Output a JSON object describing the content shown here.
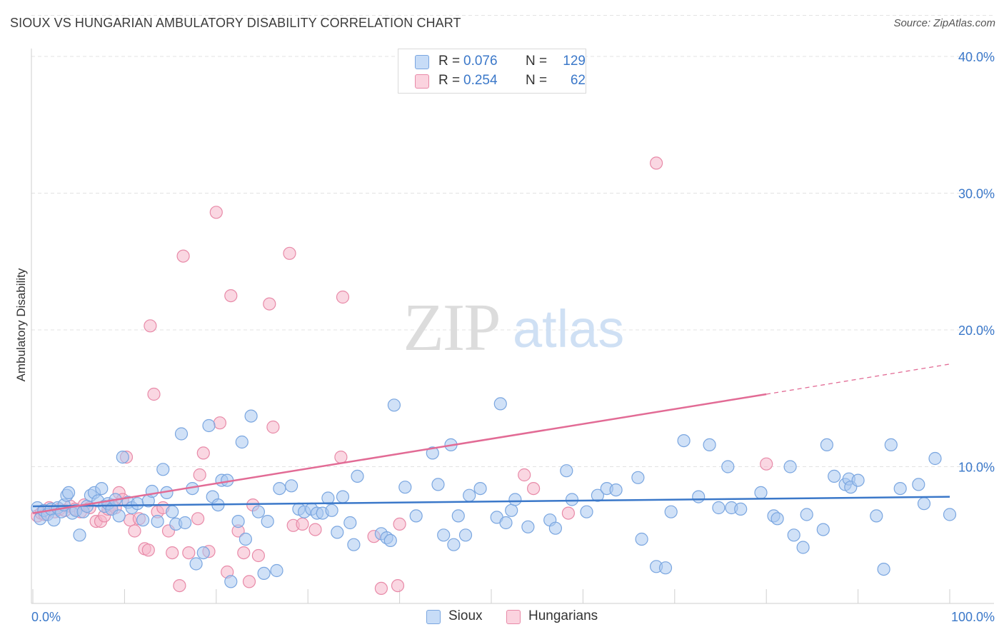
{
  "header": {
    "title": "SIOUX VS HUNGARIAN AMBULATORY DISABILITY CORRELATION CHART",
    "source": "Source: ZipAtlas.com"
  },
  "watermark": {
    "zip": "ZIP",
    "atlas": "atlas"
  },
  "legend": {
    "rows": [
      {
        "r_label": "R =",
        "r_value": "0.076",
        "n_label": "N =",
        "n_value": "129",
        "color": "#a9c8f1"
      },
      {
        "r_label": "R =",
        "r_value": "0.254",
        "n_label": "N =",
        "n_value": "62",
        "color": "#f6b7ca"
      }
    ]
  },
  "chart_data": {
    "type": "scatter",
    "title": "SIOUX VS HUNGARIAN AMBULATORY DISABILITY CORRELATION CHART",
    "xlabel": "",
    "ylabel": "Ambulatory Disability",
    "xlim": [
      0,
      100
    ],
    "ylim": [
      0,
      43
    ],
    "x_tick_labels": [
      "0.0%",
      "100.0%"
    ],
    "y_ticks": [
      10,
      20,
      30,
      40
    ],
    "y_tick_labels": [
      "10.0%",
      "20.0%",
      "30.0%",
      "40.0%"
    ],
    "grid": "horizontal dashed",
    "legend_position": "top-center",
    "series": [
      {
        "name": "Sioux",
        "color": "#a9c8f1",
        "stroke": "#7aa6e0",
        "trend": {
          "x": [
            0,
            100
          ],
          "y": [
            7.1,
            7.8
          ],
          "color": "#3b78c9"
        },
        "points": [
          [
            0.5,
            7.0
          ],
          [
            0.8,
            6.2
          ],
          [
            1.2,
            6.8
          ],
          [
            1.6,
            6.5
          ],
          [
            2.0,
            6.9
          ],
          [
            2.3,
            6.1
          ],
          [
            2.7,
            7.0
          ],
          [
            3.1,
            6.7
          ],
          [
            3.4,
            7.2
          ],
          [
            3.7,
            7.9
          ],
          [
            3.9,
            8.1
          ],
          [
            4.3,
            6.6
          ],
          [
            4.7,
            6.8
          ],
          [
            5.1,
            5.0
          ],
          [
            5.5,
            6.7
          ],
          [
            5.9,
            7.1
          ],
          [
            6.3,
            7.9
          ],
          [
            6.7,
            8.1
          ],
          [
            7.1,
            7.5
          ],
          [
            7.5,
            8.4
          ],
          [
            7.8,
            7.1
          ],
          [
            8.2,
            7.3
          ],
          [
            8.6,
            6.9
          ],
          [
            9.0,
            7.6
          ],
          [
            9.4,
            6.4
          ],
          [
            9.8,
            10.7
          ],
          [
            10.4,
            7.4
          ],
          [
            10.8,
            7.0
          ],
          [
            11.4,
            7.3
          ],
          [
            12.0,
            6.1
          ],
          [
            12.6,
            7.5
          ],
          [
            13.0,
            8.2
          ],
          [
            13.6,
            6.0
          ],
          [
            14.2,
            9.8
          ],
          [
            14.6,
            8.1
          ],
          [
            15.2,
            6.7
          ],
          [
            15.6,
            5.8
          ],
          [
            16.2,
            12.4
          ],
          [
            16.6,
            5.9
          ],
          [
            17.4,
            8.4
          ],
          [
            17.8,
            2.9
          ],
          [
            18.6,
            3.7
          ],
          [
            19.2,
            13.0
          ],
          [
            19.6,
            7.8
          ],
          [
            20.2,
            7.2
          ],
          [
            20.6,
            9.0
          ],
          [
            21.2,
            9.0
          ],
          [
            21.6,
            1.6
          ],
          [
            22.4,
            6.0
          ],
          [
            22.8,
            11.8
          ],
          [
            23.2,
            4.7
          ],
          [
            23.8,
            13.7
          ],
          [
            24.6,
            6.7
          ],
          [
            25.2,
            2.2
          ],
          [
            25.6,
            6.0
          ],
          [
            26.6,
            2.4
          ],
          [
            26.9,
            8.4
          ],
          [
            28.2,
            8.6
          ],
          [
            29.0,
            6.9
          ],
          [
            29.6,
            6.7
          ],
          [
            30.4,
            6.9
          ],
          [
            31.0,
            6.6
          ],
          [
            31.6,
            6.6
          ],
          [
            32.2,
            7.7
          ],
          [
            32.6,
            6.8
          ],
          [
            33.2,
            5.2
          ],
          [
            33.8,
            7.8
          ],
          [
            34.6,
            5.9
          ],
          [
            35.0,
            4.3
          ],
          [
            35.4,
            9.3
          ],
          [
            38.0,
            5.1
          ],
          [
            38.6,
            4.8
          ],
          [
            39.0,
            4.6
          ],
          [
            39.4,
            14.5
          ],
          [
            40.6,
            8.5
          ],
          [
            41.8,
            6.4
          ],
          [
            43.6,
            11.0
          ],
          [
            44.2,
            8.7
          ],
          [
            44.8,
            5.0
          ],
          [
            45.6,
            11.6
          ],
          [
            45.9,
            4.3
          ],
          [
            46.4,
            6.4
          ],
          [
            47.2,
            5.0
          ],
          [
            47.6,
            7.9
          ],
          [
            48.8,
            8.4
          ],
          [
            50.6,
            6.3
          ],
          [
            51.0,
            14.6
          ],
          [
            51.6,
            5.9
          ],
          [
            52.2,
            6.8
          ],
          [
            52.6,
            7.6
          ],
          [
            54.0,
            5.6
          ],
          [
            56.4,
            6.1
          ],
          [
            57.0,
            5.5
          ],
          [
            58.2,
            9.7
          ],
          [
            58.8,
            7.6
          ],
          [
            60.4,
            6.7
          ],
          [
            61.6,
            7.9
          ],
          [
            62.6,
            8.4
          ],
          [
            63.6,
            8.3
          ],
          [
            66.0,
            9.2
          ],
          [
            66.4,
            4.7
          ],
          [
            68.0,
            2.7
          ],
          [
            69.0,
            2.6
          ],
          [
            69.6,
            6.7
          ],
          [
            71.0,
            11.9
          ],
          [
            72.6,
            7.8
          ],
          [
            73.8,
            11.6
          ],
          [
            74.8,
            7.0
          ],
          [
            75.8,
            10.0
          ],
          [
            76.2,
            7.0
          ],
          [
            77.2,
            6.9
          ],
          [
            79.4,
            8.1
          ],
          [
            80.8,
            6.4
          ],
          [
            81.2,
            6.2
          ],
          [
            82.6,
            10.0
          ],
          [
            83.0,
            5.0
          ],
          [
            84.0,
            4.1
          ],
          [
            84.4,
            6.5
          ],
          [
            86.2,
            5.4
          ],
          [
            86.6,
            11.6
          ],
          [
            87.4,
            9.3
          ],
          [
            88.6,
            8.7
          ],
          [
            89.0,
            9.1
          ],
          [
            89.2,
            8.5
          ],
          [
            90.0,
            9.0
          ],
          [
            92.0,
            6.4
          ],
          [
            92.8,
            2.5
          ],
          [
            93.6,
            11.6
          ],
          [
            94.6,
            8.4
          ],
          [
            96.6,
            8.7
          ],
          [
            97.2,
            7.3
          ],
          [
            98.4,
            10.6
          ],
          [
            100.0,
            6.5
          ]
        ]
      },
      {
        "name": "Hungarians",
        "color": "#f6b7ca",
        "stroke": "#e88aa8",
        "trend": {
          "x": [
            0,
            80,
            100
          ],
          "y": [
            6.6,
            15.3,
            17.5
          ],
          "color": "#e26b95"
        },
        "points": [
          [
            0.5,
            6.4
          ],
          [
            0.9,
            6.6
          ],
          [
            1.3,
            6.5
          ],
          [
            1.8,
            7.0
          ],
          [
            2.4,
            6.7
          ],
          [
            2.9,
            6.9
          ],
          [
            3.5,
            6.8
          ],
          [
            4.1,
            7.1
          ],
          [
            4.6,
            6.9
          ],
          [
            5.2,
            6.7
          ],
          [
            5.6,
            7.2
          ],
          [
            6.2,
            7.0
          ],
          [
            6.9,
            6.0
          ],
          [
            7.4,
            6.0
          ],
          [
            7.8,
            6.4
          ],
          [
            8.2,
            6.9
          ],
          [
            8.6,
            7.2
          ],
          [
            9.0,
            7.0
          ],
          [
            9.4,
            8.1
          ],
          [
            9.8,
            7.6
          ],
          [
            10.2,
            10.7
          ],
          [
            10.6,
            6.1
          ],
          [
            11.1,
            5.3
          ],
          [
            11.6,
            6.2
          ],
          [
            12.2,
            4.0
          ],
          [
            12.6,
            3.9
          ],
          [
            12.8,
            20.3
          ],
          [
            13.2,
            15.3
          ],
          [
            13.6,
            6.7
          ],
          [
            14.2,
            7.0
          ],
          [
            14.8,
            5.3
          ],
          [
            15.2,
            3.7
          ],
          [
            16.0,
            1.3
          ],
          [
            16.4,
            25.4
          ],
          [
            17.0,
            3.7
          ],
          [
            18.0,
            6.2
          ],
          [
            18.2,
            9.4
          ],
          [
            18.6,
            11.0
          ],
          [
            19.2,
            3.8
          ],
          [
            20.0,
            28.6
          ],
          [
            20.4,
            13.2
          ],
          [
            21.2,
            2.3
          ],
          [
            21.6,
            22.5
          ],
          [
            22.4,
            5.3
          ],
          [
            23.0,
            3.7
          ],
          [
            23.6,
            1.6
          ],
          [
            24.0,
            7.2
          ],
          [
            24.6,
            3.5
          ],
          [
            25.8,
            21.9
          ],
          [
            26.2,
            12.9
          ],
          [
            28.0,
            25.6
          ],
          [
            28.4,
            5.7
          ],
          [
            29.4,
            5.8
          ],
          [
            30.8,
            5.4
          ],
          [
            33.6,
            10.7
          ],
          [
            33.8,
            22.4
          ],
          [
            37.2,
            4.9
          ],
          [
            38.0,
            1.1
          ],
          [
            39.8,
            1.3
          ],
          [
            40.0,
            5.8
          ],
          [
            53.6,
            9.4
          ],
          [
            54.6,
            8.4
          ],
          [
            58.4,
            6.6
          ],
          [
            68.0,
            32.2
          ],
          [
            80.0,
            10.2
          ]
        ]
      }
    ]
  }
}
